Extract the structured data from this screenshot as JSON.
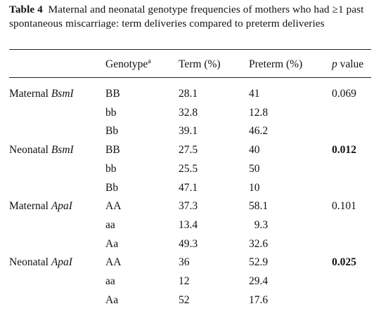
{
  "caption": {
    "label": "Table 4",
    "text": "Maternal and neonatal genotype frequencies of mothers who had ≥1 past spontaneous miscarriage: term deliveries compared to preterm deliveries"
  },
  "headers": {
    "genotype": "Genotype",
    "genotype_sup": "a",
    "term": "Term (%)",
    "preterm": "Preterm (%)",
    "p_italic": "p",
    "p_rest": " value"
  },
  "groups": [
    {
      "prefix": "Maternal ",
      "gene": "BsmI",
      "p_value": "0.069",
      "p_bold": false,
      "rows": [
        {
          "genotype": "BB",
          "term": "28.1",
          "preterm": "41"
        },
        {
          "genotype": "bb",
          "term": "32.8",
          "preterm": "12.8"
        },
        {
          "genotype": "Bb",
          "term": "39.1",
          "preterm": "46.2"
        }
      ]
    },
    {
      "prefix": "Neonatal ",
      "gene": "BsmI",
      "p_value": "0.012",
      "p_bold": true,
      "rows": [
        {
          "genotype": "BB",
          "term": "27.5",
          "preterm": "40"
        },
        {
          "genotype": "bb",
          "term": "25.5",
          "preterm": "50"
        },
        {
          "genotype": "Bb",
          "term": "47.1",
          "preterm": "10"
        }
      ]
    },
    {
      "prefix": "Maternal ",
      "gene": "ApaI",
      "p_value": "0.101",
      "p_bold": false,
      "rows": [
        {
          "genotype": "AA",
          "term": "37.3",
          "preterm": "58.1"
        },
        {
          "genotype": "aa",
          "term": "13.4",
          "preterm": "  9.3"
        },
        {
          "genotype": "Aa",
          "term": "49.3",
          "preterm": "32.6"
        }
      ]
    },
    {
      "prefix": "Neonatal ",
      "gene": "ApaI",
      "p_value": "0.025",
      "p_bold": true,
      "rows": [
        {
          "genotype": "AA",
          "term": "36",
          "preterm": "52.9"
        },
        {
          "genotype": "aa",
          "term": "12",
          "preterm": "29.4"
        },
        {
          "genotype": "Aa",
          "term": "52",
          "preterm": "17.6"
        }
      ]
    }
  ]
}
